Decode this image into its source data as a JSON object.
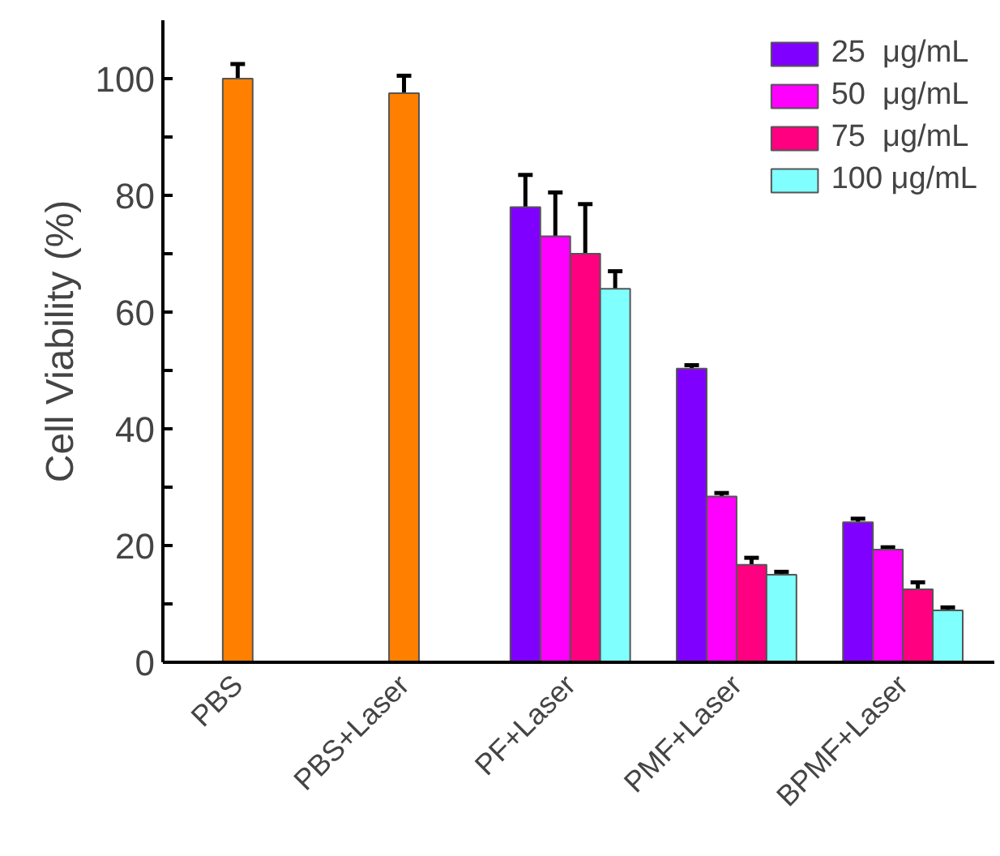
{
  "chart_data": {
    "type": "bar",
    "ylabel": "Cell Viability (%)",
    "categories": [
      "PBS",
      "PBS+Laser",
      "PF+Laser",
      "PMF+Laser",
      "BPMF+Laser"
    ],
    "series": [
      {
        "color": "#ff8000",
        "values": [
          100,
          97.5,
          null,
          null,
          null
        ],
        "errors": [
          2.5,
          3,
          null,
          null,
          null
        ]
      },
      {
        "name": "25  μg/mL",
        "color": "#8000ff",
        "values": [
          null,
          null,
          78,
          50.3,
          24
        ],
        "errors": [
          null,
          null,
          5.5,
          0.6,
          0.6
        ]
      },
      {
        "name": "50  μg/mL",
        "color": "#ff00ff",
        "values": [
          null,
          null,
          73,
          28.4,
          19.3
        ],
        "errors": [
          null,
          null,
          7.5,
          0.6,
          0.4
        ]
      },
      {
        "name": "75  μg/mL",
        "color": "#ff0080",
        "values": [
          null,
          null,
          70,
          16.7,
          12.5
        ],
        "errors": [
          null,
          null,
          8.5,
          1.2,
          1.2
        ]
      },
      {
        "name": "100 μg/mL",
        "color": "#80ffff",
        "values": [
          null,
          null,
          64,
          15,
          8.9
        ],
        "errors": [
          null,
          null,
          3,
          0.5,
          0.5
        ]
      }
    ],
    "ylim": [
      0,
      110
    ],
    "yticks": [
      0,
      {
        "value": 10,
        "label": null
      },
      20,
      {
        "value": 30,
        "label": null
      },
      40,
      {
        "value": 50,
        "label": null
      },
      60,
      {
        "value": 70,
        "label": null
      },
      80,
      {
        "value": 90,
        "label": null
      },
      100
    ],
    "legend": "top right",
    "grid": false
  }
}
